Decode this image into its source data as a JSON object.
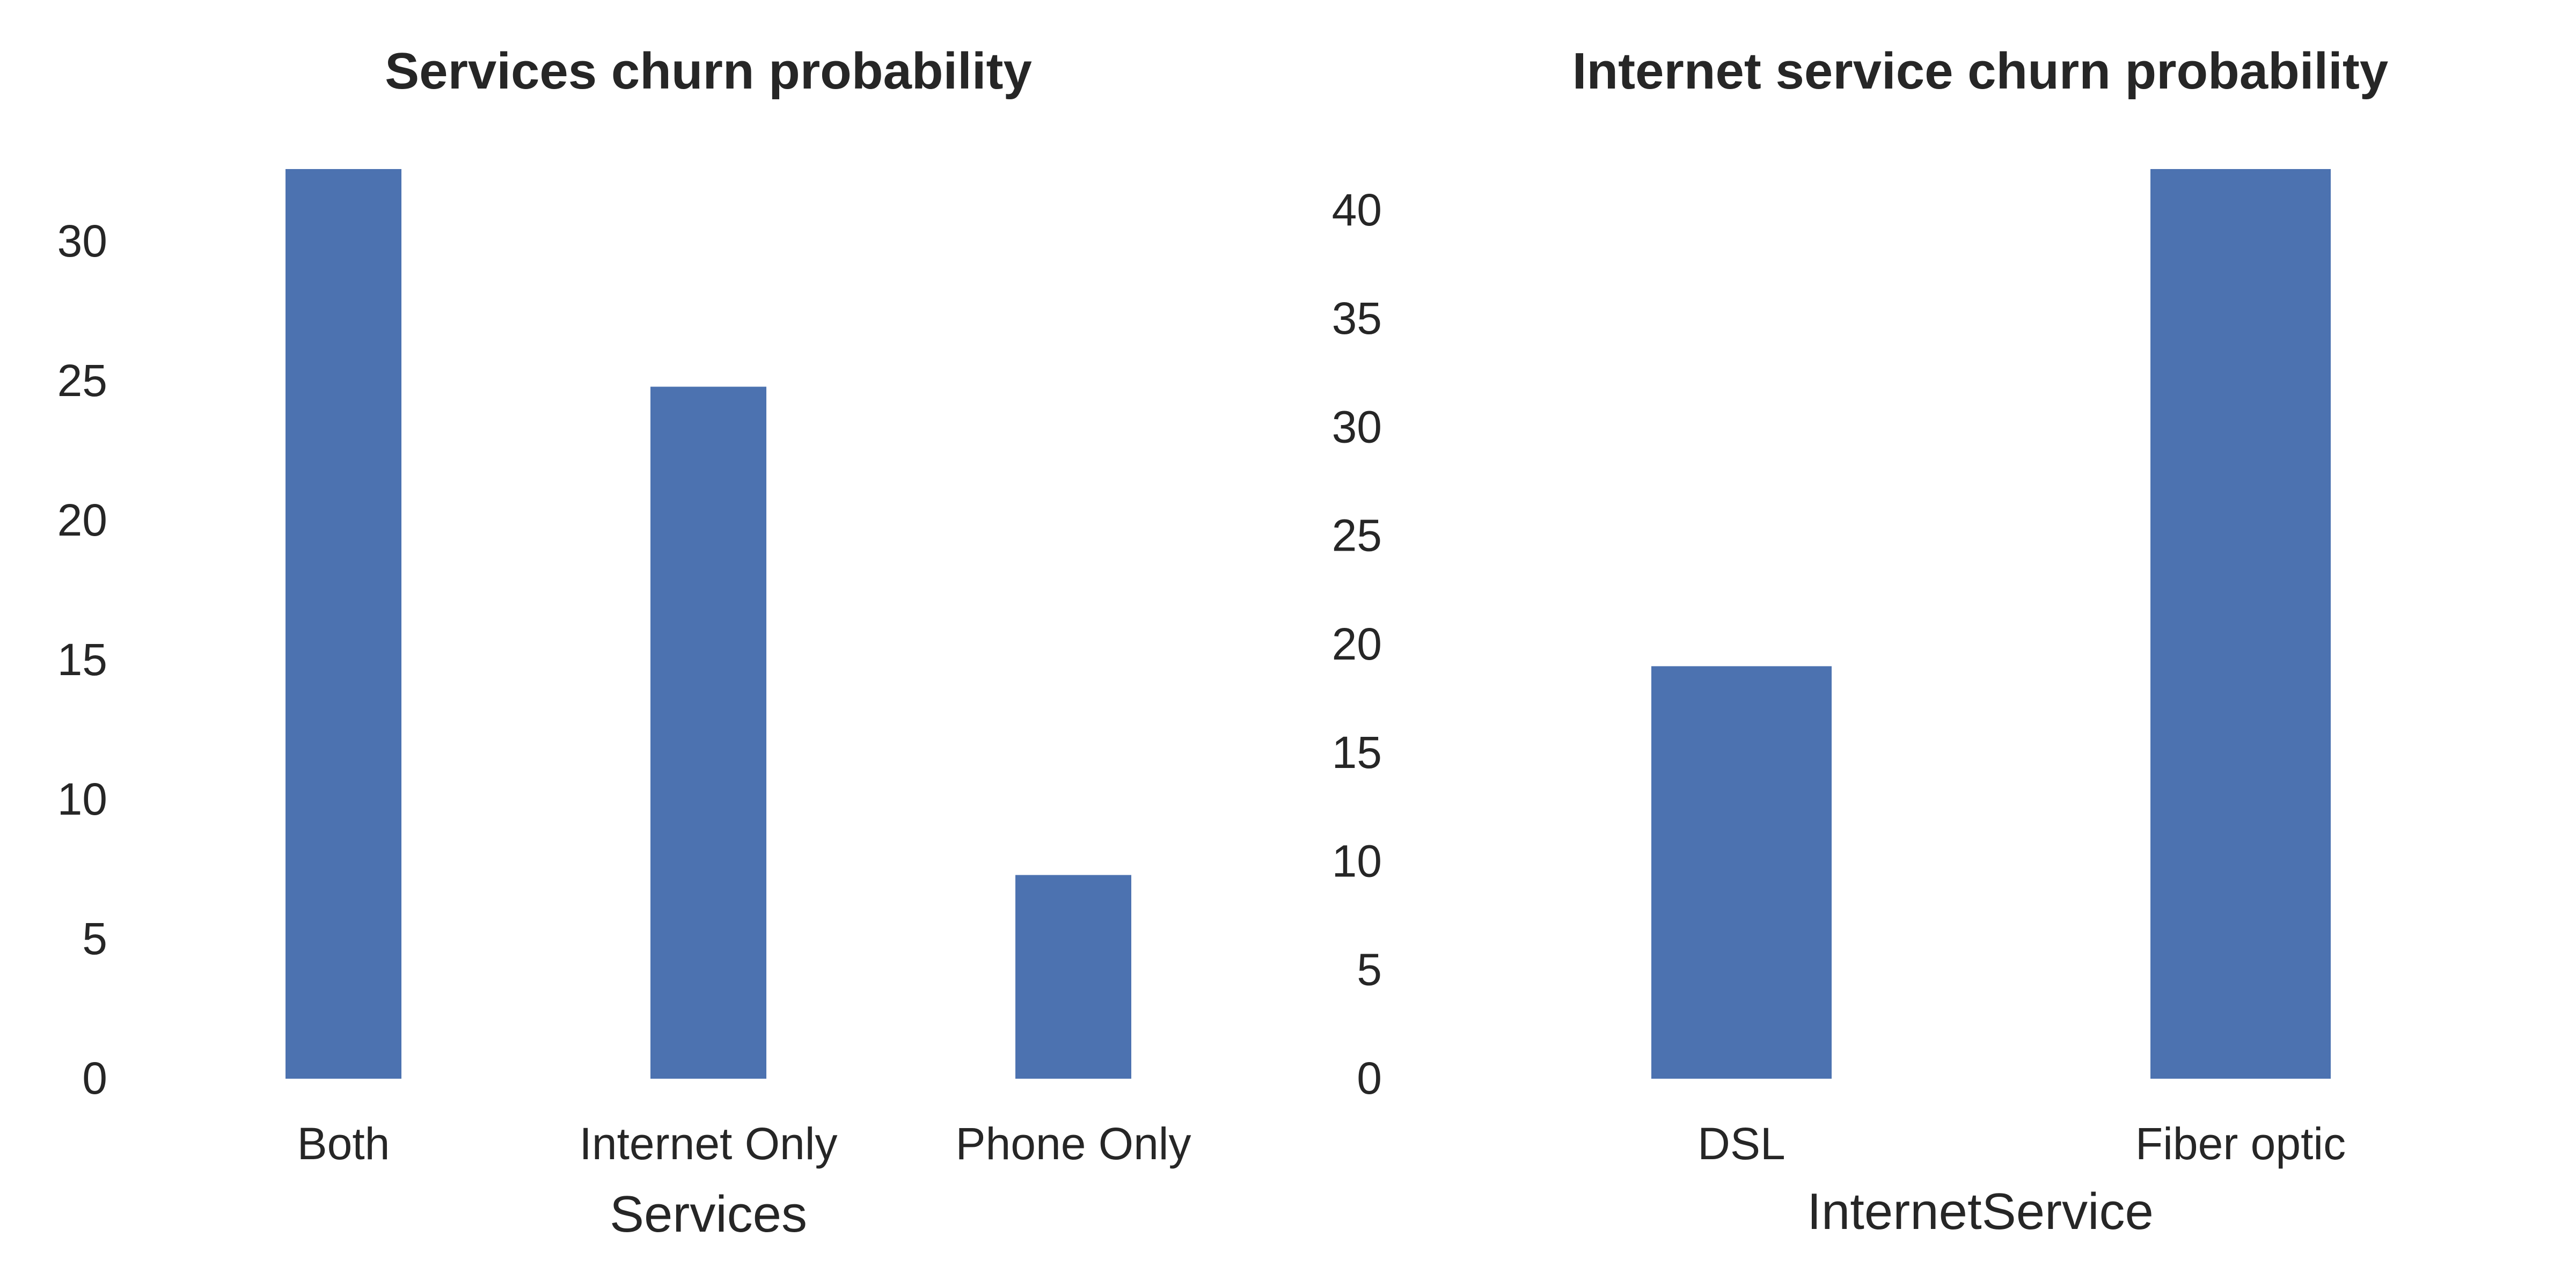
{
  "colors": {
    "bar": "#4c72b0",
    "text": "#262626",
    "background": "#ffffff"
  },
  "chart_data": [
    {
      "type": "bar",
      "title": "Services churn probability",
      "xlabel": "Services",
      "ylabel": "",
      "categories": [
        "Both",
        "Internet Only",
        "Phone Only"
      ],
      "values": [
        32.6,
        24.8,
        7.3
      ],
      "ylim": [
        0,
        32.6
      ],
      "yticks": [
        0,
        5,
        10,
        15,
        20,
        25,
        30
      ],
      "grid": false,
      "legend": "none"
    },
    {
      "type": "bar",
      "title": "Internet service churn probability",
      "xlabel": "InternetService",
      "ylabel": "",
      "categories": [
        "DSL",
        "Fiber optic"
      ],
      "values": [
        19.0,
        41.9
      ],
      "ylim": [
        0,
        41.9
      ],
      "yticks": [
        0,
        5,
        10,
        15,
        20,
        25,
        30,
        35,
        40
      ],
      "grid": false,
      "legend": "none"
    }
  ]
}
